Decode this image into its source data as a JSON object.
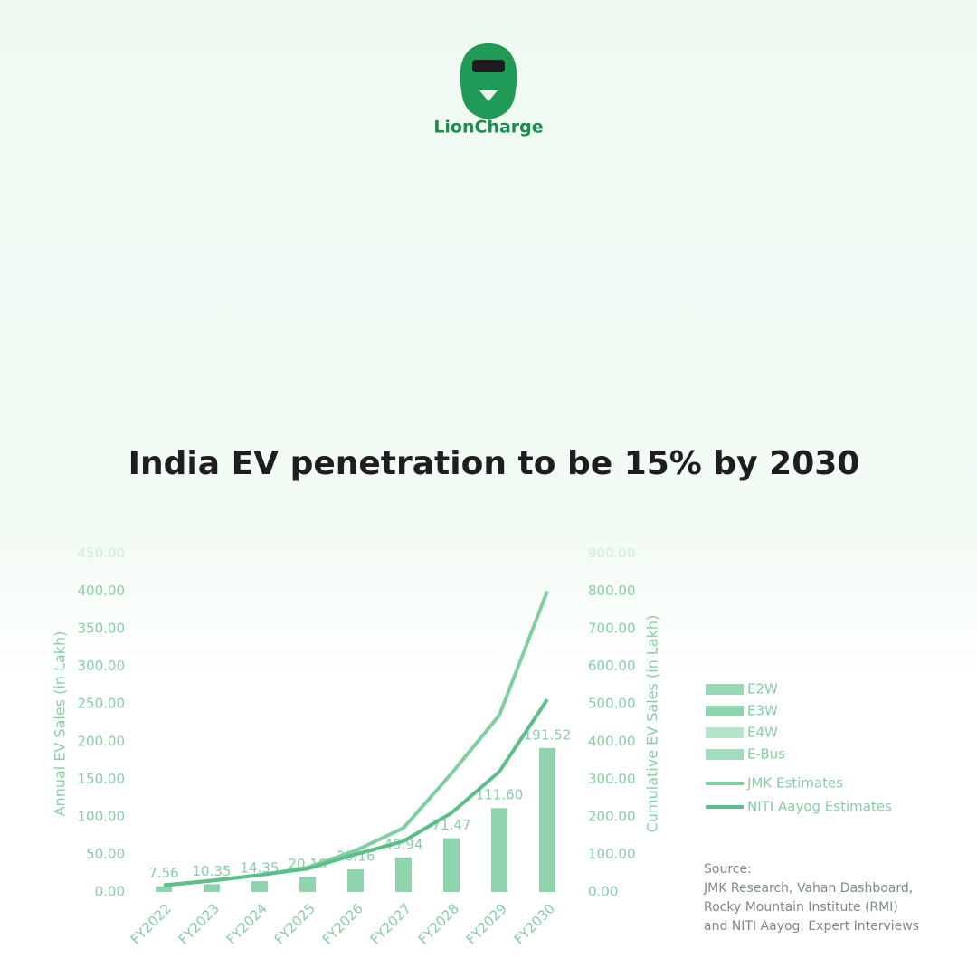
{
  "brand": "LionCharge",
  "chart_data": {
    "type": "bar",
    "title": "India EV penetration to be 15% by 2030",
    "y_label": "Annual EV Sales (in Lakh)",
    "y2_label": "Cumulative EV Sales (in Lakh)",
    "categories": [
      "FY2022",
      "FY2023",
      "FY2024",
      "FY2025",
      "FY2026",
      "FY2027",
      "FY2028",
      "FY2029",
      "FY2030"
    ],
    "values": [
      7.56,
      10.35,
      14.35,
      20.1,
      30.16,
      45.94,
      71.47,
      111.6,
      191.52
    ],
    "value_labels": [
      "7.56",
      "10.35",
      "14.35",
      "20.10",
      "30.16",
      "45.94",
      "71.47",
      "111.60",
      "191.52"
    ],
    "color": "#8fd4ac",
    "legend_items": [
      {
        "name": "E2W",
        "color": "#9ad8b4"
      },
      {
        "name": "E3W",
        "color": "#8fd4ac"
      },
      {
        "name": "E4W",
        "color": "#b5e4c8"
      },
      {
        "name": "E-Bus",
        "color": "#a3dcba"
      }
    ],
    "series": [
      {
        "name": "JMK Estimates",
        "color": "#7fcfa0",
        "axis": "y2",
        "values": [
          17,
          30,
          45,
          65,
          110,
          170,
          315,
          470,
          800
        ]
      },
      {
        "name": "NITI Aayog Estimates",
        "color": "#5cbf88",
        "axis": "y2",
        "values": [
          18,
          30,
          45,
          62,
          100,
          135,
          210,
          320,
          512
        ]
      }
    ],
    "ylim": [
      0,
      450
    ],
    "yticks": [
      {
        "value": 0,
        "label": "0.00"
      },
      {
        "value": 50,
        "label": "50.00"
      },
      {
        "value": 100,
        "label": "100.00"
      },
      {
        "value": 150,
        "label": "150.00"
      },
      {
        "value": 200,
        "label": "200.00"
      },
      {
        "value": 250,
        "label": "250.00"
      },
      {
        "value": 300,
        "label": "300.00"
      },
      {
        "value": 350,
        "label": "350.00"
      },
      {
        "value": 400,
        "label": "400.00"
      },
      {
        "value": 450,
        "label": "450.00"
      }
    ],
    "y2lim": [
      0,
      900
    ],
    "y2ticks": [
      {
        "value": 0,
        "label": "0.00"
      },
      {
        "value": 100,
        "label": "100.00"
      },
      {
        "value": 200,
        "label": "200.00"
      },
      {
        "value": 300,
        "label": "300.00"
      },
      {
        "value": 400,
        "label": "400.00"
      },
      {
        "value": 500,
        "label": "500.00"
      },
      {
        "value": 600,
        "label": "600.00"
      },
      {
        "value": 700,
        "label": "700.00"
      },
      {
        "value": 800,
        "label": "800.00"
      },
      {
        "value": 900,
        "label": "900.00"
      }
    ],
    "source": [
      "Source:",
      "JMK Research, Vahan Dashboard,",
      "Rocky Mountain Institute (RMI)",
      "and NITI Aayog, Expert Interviews"
    ]
  }
}
